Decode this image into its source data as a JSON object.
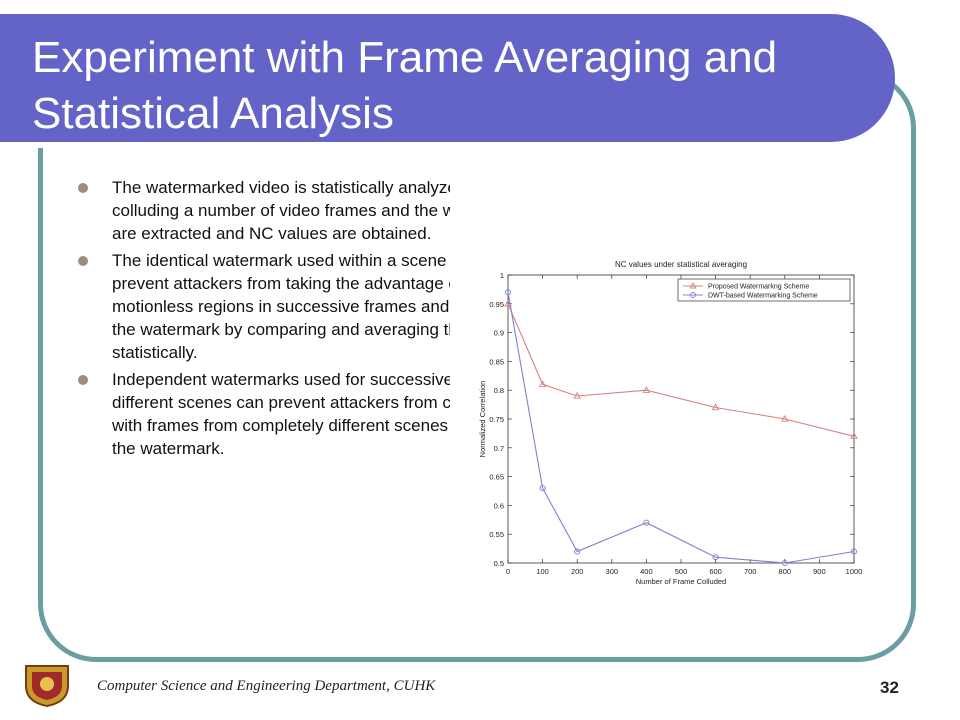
{
  "slide": {
    "title": "Experiment with Frame Averaging and Statistical Analysis",
    "bullets": [
      "The watermarked video is statistically analyzed by colluding a number of video frames and the watermarks are extracted and NC values are obtained.",
      "The identical watermark used within a scene can prevent attackers from taking the advantage of motionless regions in successive frames and removing the watermark by comparing and averaging the frames statistically.",
      "Independent watermarks used for successive, but different scenes can prevent attackers from colluding with frames from completely different scenes to extract the watermark."
    ],
    "footer": "Computer Science and Engineering Department, CUHK",
    "page_number": "32",
    "colors": {
      "title_bar": "#6464c8",
      "frame_border": "#6a9ea0",
      "bullet": "#9b8e7c"
    }
  },
  "chart_data": {
    "type": "line",
    "title": "NC values under statistical averaging",
    "xlabel": "Number of Frame Colluded",
    "ylabel": "Normalized Correlation",
    "x": [
      0,
      100,
      200,
      400,
      600,
      800,
      1000
    ],
    "xlim": [
      0,
      1000
    ],
    "ylim": [
      0.5,
      1
    ],
    "xticks": [
      "0",
      "100",
      "200",
      "300",
      "400",
      "500",
      "600",
      "700",
      "800",
      "900",
      "1000"
    ],
    "yticks": [
      "0.5",
      "0.55",
      "0.6",
      "0.65",
      "0.7",
      "0.75",
      "0.8",
      "0.85",
      "0.9",
      "0.95",
      "1"
    ],
    "grid": false,
    "legend_position": "top-right",
    "series": [
      {
        "name": "Proposed Watermarkng Scheme",
        "values": [
          0.95,
          0.81,
          0.79,
          0.8,
          0.77,
          0.75,
          0.72
        ],
        "color": "#d98080",
        "marker": "triangle"
      },
      {
        "name": "DWT-based  Watermarking Scheme",
        "values": [
          0.97,
          0.63,
          0.52,
          0.57,
          0.51,
          0.5,
          0.52
        ],
        "color": "#8080d0",
        "marker": "circle"
      }
    ]
  }
}
